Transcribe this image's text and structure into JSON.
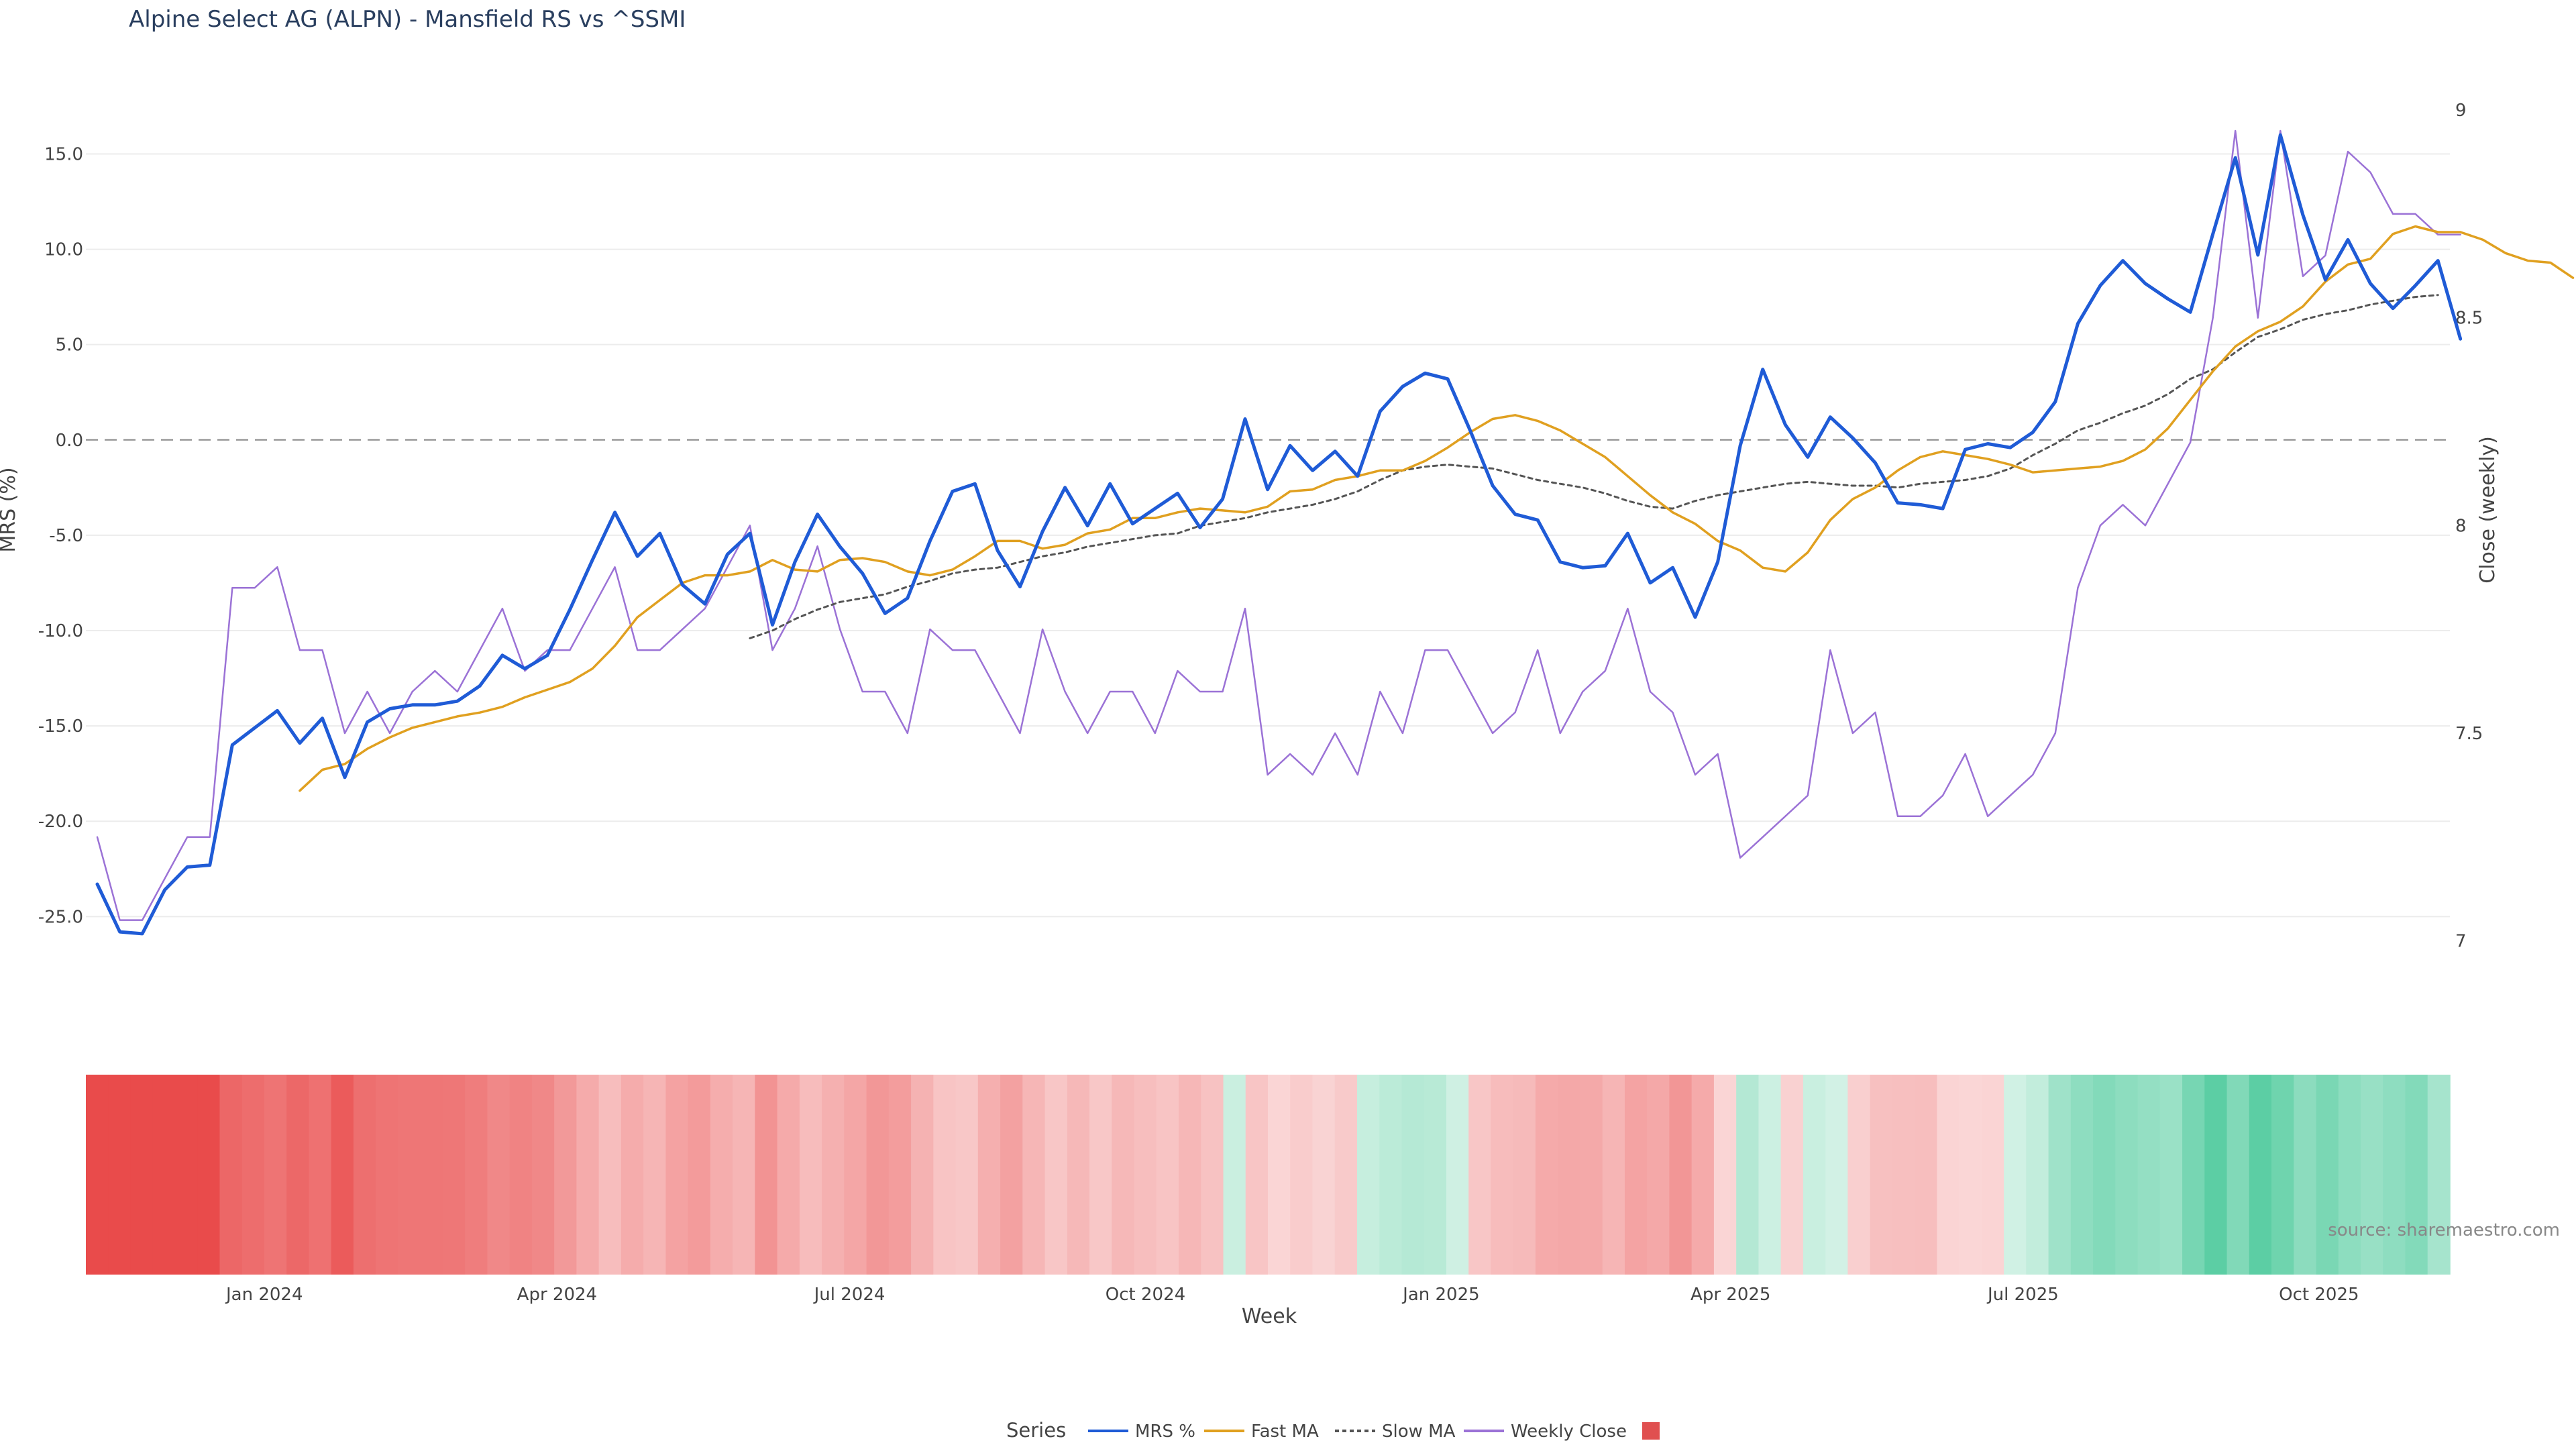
{
  "title": "Alpine Select AG (ALPN) - Mansfield RS vs ^SSMI",
  "source": "source: sharemaestro.com",
  "legend": {
    "title": "Series",
    "items": [
      {
        "label": "MRS %",
        "color": "#1f5bd6",
        "style": "solid"
      },
      {
        "label": "Fast MA",
        "color": "#e0a020",
        "style": "solid"
      },
      {
        "label": "Slow MA",
        "color": "#555555",
        "style": "dotted"
      },
      {
        "label": "Weekly Close",
        "color": "#9b72d6",
        "style": "solid"
      },
      {
        "label": "",
        "color": "#e05050",
        "style": "square"
      }
    ]
  },
  "colors": {
    "mrs": "#1f5bd6",
    "fast_ma": "#e0a020",
    "slow_ma": "#555555",
    "close": "#9b72d6",
    "neg_strip": "#e94b4b",
    "pos_strip": "#5ccea4"
  },
  "chart_data": {
    "type": "line",
    "x_unit": "week",
    "x_start": "2023-11-10",
    "xlabel": "Week",
    "ylabel": "MRS (%)",
    "y2label": "Close (weekly)",
    "ylim": [
      -29,
      18.5
    ],
    "y2lim": [
      6.875,
      9.055
    ],
    "yticks": [
      15.0,
      10.0,
      5.0,
      0.0,
      -5.0,
      -10.0,
      -15.0,
      -20.0,
      -25.0
    ],
    "y2ticks": [
      9,
      8.5,
      8,
      7.5,
      7
    ],
    "zero_line": 0,
    "xticks": [
      {
        "label": "Jan 2024",
        "date": "2024-01-01"
      },
      {
        "label": "Apr 2024",
        "date": "2024-04-01"
      },
      {
        "label": "Jul 2024",
        "date": "2024-07-01"
      },
      {
        "label": "Oct 2024",
        "date": "2024-10-01"
      },
      {
        "label": "Jan 2025",
        "date": "2025-01-01"
      },
      {
        "label": "Apr 2025",
        "date": "2025-04-01"
      },
      {
        "label": "Jul 2025",
        "date": "2025-07-01"
      },
      {
        "label": "Oct 2025",
        "date": "2025-10-01"
      }
    ],
    "series": [
      {
        "name": "MRS %",
        "axis": "left",
        "values": [
          -23.3,
          -25.8,
          -25.9,
          -23.6,
          -22.4,
          -22.3,
          -16.0,
          -15.1,
          -14.2,
          -15.9,
          -14.6,
          -17.7,
          -14.8,
          -14.1,
          -13.9,
          -13.9,
          -13.7,
          -12.9,
          -11.3,
          -12.0,
          -11.3,
          -8.9,
          -6.3,
          -3.8,
          -6.1,
          -4.9,
          -7.6,
          -8.6,
          -6.0,
          -4.9,
          -9.7,
          -6.4,
          -3.9,
          -5.6,
          -7.0,
          -9.1,
          -8.3,
          -5.3,
          -2.7,
          -2.3,
          -5.8,
          -7.7,
          -4.8,
          -2.5,
          -4.5,
          -2.3,
          -4.4,
          -3.6,
          -2.8,
          -4.6,
          -3.1,
          1.1,
          -2.6,
          -0.3,
          -1.6,
          -0.6,
          -1.9,
          1.5,
          2.8,
          3.5,
          3.2,
          0.5,
          -2.4,
          -3.9,
          -4.2,
          -6.4,
          -6.7,
          -6.6,
          -4.9,
          -7.5,
          -6.7,
          -9.3,
          -6.4,
          -0.3,
          3.7,
          0.8,
          -0.9,
          1.2,
          0.1,
          -1.2,
          -3.3,
          -3.4,
          -3.6,
          -0.5,
          -0.2,
          -0.4,
          0.4,
          2.0,
          6.1,
          8.1,
          9.4,
          8.2,
          7.4,
          6.7,
          10.8,
          14.8,
          9.7,
          16.0,
          11.8,
          8.4,
          10.5,
          8.2,
          6.9,
          8.1,
          9.4,
          5.3
        ]
      },
      {
        "name": "Fast MA",
        "axis": "left",
        "start_index": 9,
        "values": [
          -18.4,
          -17.3,
          -17.0,
          -16.2,
          -15.6,
          -15.1,
          -14.8,
          -14.5,
          -14.3,
          -14.0,
          -13.5,
          -13.1,
          -12.7,
          -12.0,
          -10.8,
          -9.3,
          -8.4,
          -7.5,
          -7.1,
          -7.1,
          -6.9,
          -6.3,
          -6.8,
          -6.9,
          -6.3,
          -6.2,
          -6.4,
          -6.9,
          -7.1,
          -6.8,
          -6.1,
          -5.3,
          -5.3,
          -5.7,
          -5.5,
          -4.9,
          -4.7,
          -4.1,
          -4.1,
          -3.8,
          -3.6,
          -3.7,
          -3.8,
          -3.5,
          -2.7,
          -2.6,
          -2.1,
          -1.9,
          -1.6,
          -1.6,
          -1.1,
          -0.4,
          0.4,
          1.1,
          1.3,
          1.0,
          0.5,
          -0.2,
          -0.9,
          -1.9,
          -2.9,
          -3.8,
          -4.4,
          -5.3,
          -5.8,
          -6.7,
          -6.9,
          -5.9,
          -4.2,
          -3.1,
          -2.5,
          -1.6,
          -0.9,
          -0.6,
          -0.8,
          -1.0,
          -1.3,
          -1.7,
          -1.6,
          -1.5,
          -1.4,
          -1.1,
          -0.5,
          0.6,
          2.1,
          3.6,
          4.9,
          5.7,
          6.2,
          7.0,
          8.3,
          9.2,
          9.5,
          10.8,
          11.2,
          10.9,
          10.9,
          10.5,
          9.8,
          9.4,
          9.3,
          8.5
        ]
      },
      {
        "name": "Slow MA",
        "axis": "left",
        "start_index": 29,
        "values": [
          -10.4,
          -10.0,
          -9.4,
          -8.9,
          -8.5,
          -8.3,
          -8.1,
          -7.7,
          -7.4,
          -7.0,
          -6.8,
          -6.7,
          -6.4,
          -6.1,
          -5.9,
          -5.6,
          -5.4,
          -5.2,
          -5.0,
          -4.9,
          -4.5,
          -4.3,
          -4.1,
          -3.8,
          -3.6,
          -3.4,
          -3.1,
          -2.7,
          -2.1,
          -1.6,
          -1.4,
          -1.3,
          -1.4,
          -1.5,
          -1.8,
          -2.1,
          -2.3,
          -2.5,
          -2.8,
          -3.2,
          -3.5,
          -3.6,
          -3.2,
          -2.9,
          -2.7,
          -2.5,
          -2.3,
          -2.2,
          -2.3,
          -2.4,
          -2.4,
          -2.5,
          -2.3,
          -2.2,
          -2.1,
          -1.9,
          -1.5,
          -0.8,
          -0.2,
          0.5,
          0.9,
          1.4,
          1.8,
          2.4,
          3.2,
          3.7,
          4.6,
          5.4,
          5.8,
          6.3,
          6.6,
          6.8,
          7.1,
          7.3,
          7.5,
          7.6
        ]
      },
      {
        "name": "Weekly Close",
        "axis": "right",
        "values": [
          7.25,
          7.05,
          7.05,
          7.15,
          7.25,
          7.25,
          7.85,
          7.85,
          7.9,
          7.7,
          7.7,
          7.5,
          7.6,
          7.5,
          7.6,
          7.65,
          7.6,
          7.7,
          7.8,
          7.65,
          7.7,
          7.7,
          7.8,
          7.9,
          7.7,
          7.7,
          7.75,
          7.8,
          7.9,
          8.0,
          7.7,
          7.8,
          7.95,
          7.75,
          7.6,
          7.6,
          7.5,
          7.75,
          7.7,
          7.7,
          7.6,
          7.5,
          7.75,
          7.6,
          7.5,
          7.6,
          7.6,
          7.5,
          7.65,
          7.6,
          7.6,
          7.8,
          7.4,
          7.45,
          7.4,
          7.5,
          7.4,
          7.6,
          7.5,
          7.7,
          7.7,
          7.6,
          7.5,
          7.55,
          7.7,
          7.5,
          7.6,
          7.65,
          7.8,
          7.6,
          7.55,
          7.4,
          7.45,
          7.2,
          7.25,
          7.3,
          7.35,
          7.7,
          7.5,
          7.55,
          7.3,
          7.3,
          7.35,
          7.45,
          7.3,
          7.35,
          7.4,
          7.5,
          7.85,
          8.0,
          8.05,
          8.0,
          8.1,
          8.2,
          8.5,
          8.95,
          8.5,
          8.95,
          8.6,
          8.65,
          8.9,
          8.85,
          8.75,
          8.75,
          8.7,
          8.7
        ]
      }
    ],
    "strip": {
      "description": "weekly MRS heat strip",
      "values": [
        -23.3,
        -25.8,
        -25.9,
        -23.6,
        -22.4,
        -22.3,
        -16.0,
        -15.1,
        -14.2,
        -15.9,
        -14.6,
        -17.7,
        -14.8,
        -14.1,
        -13.9,
        -13.9,
        -13.7,
        -12.9,
        -11.3,
        -12.0,
        -11.3,
        -8.9,
        -6.3,
        -3.8,
        -6.1,
        -4.9,
        -7.6,
        -8.6,
        -6.0,
        -4.9,
        -9.7,
        -6.4,
        -3.9,
        -5.6,
        -7.0,
        -9.1,
        -8.3,
        -5.3,
        -2.7,
        -2.3,
        -5.8,
        -7.7,
        -4.8,
        -2.5,
        -4.5,
        -2.3,
        -4.4,
        -3.6,
        -2.8,
        -4.6,
        -3.1,
        1.1,
        -2.6,
        -0.3,
        -1.6,
        -0.6,
        -1.9,
        1.5,
        2.8,
        3.5,
        3.2,
        0.5,
        -2.4,
        -3.9,
        -4.2,
        -6.4,
        -6.7,
        -6.6,
        -4.9,
        -7.5,
        -6.7,
        -9.3,
        -6.4,
        -0.3,
        3.7,
        0.8,
        -0.9,
        1.2,
        0.1,
        -1.2,
        -3.3,
        -3.4,
        -3.6,
        -0.5,
        -0.2,
        -0.4,
        0.4,
        2.0,
        6.1,
        8.1,
        9.4,
        8.2,
        7.4,
        6.7,
        10.8,
        14.8,
        9.7,
        16.0,
        11.8,
        8.4,
        10.5,
        8.2,
        6.9,
        8.1,
        9.4,
        5.3
      ]
    }
  }
}
